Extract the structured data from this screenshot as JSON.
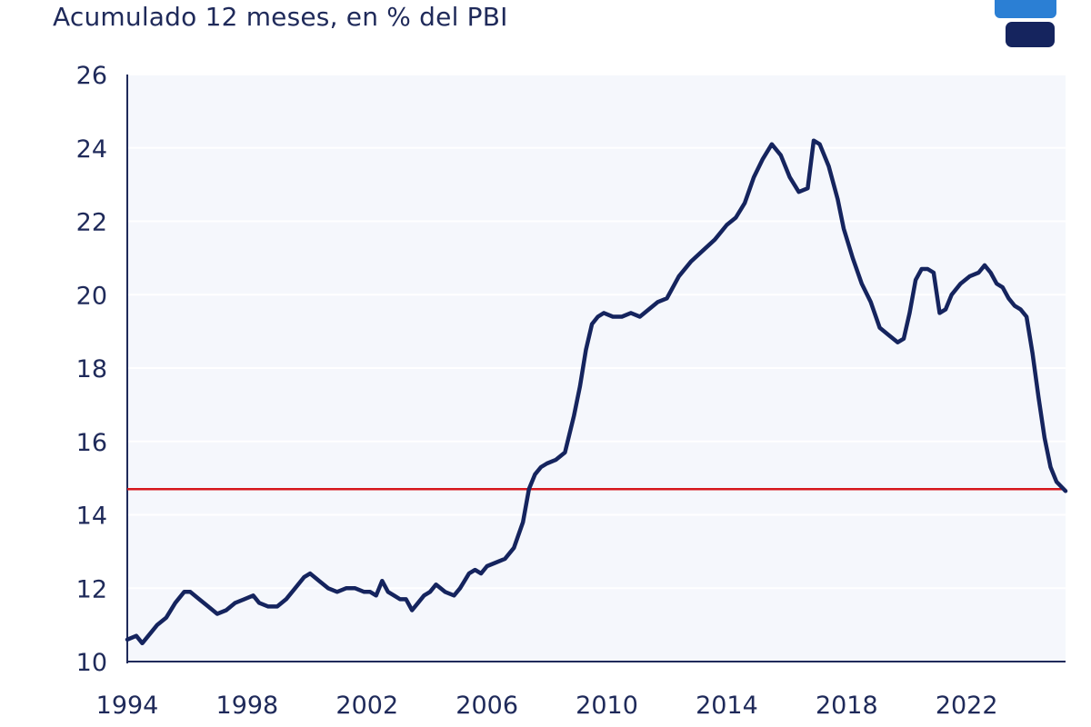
{
  "subtitle": "Acumulado 12 meses, en % del PBI",
  "logo_icon": "brand-logo-icon",
  "colors": {
    "series": "#15245e",
    "reference": "#d6171c",
    "axis": "#1f2a5a",
    "plot_bg": "#f5f7fc",
    "grid": "#ffffff"
  },
  "chart_data": {
    "type": "line",
    "title": "",
    "xlabel": "",
    "ylabel": "",
    "xlim": [
      1994,
      2025.3
    ],
    "ylim": [
      10,
      26
    ],
    "grid": "horizontal",
    "yticks": [
      "10",
      "12",
      "14",
      "16",
      "18",
      "20",
      "22",
      "24",
      "26"
    ],
    "xticks": [
      "1994",
      "1998",
      "2002",
      "2006",
      "2010",
      "2014",
      "2018",
      "2022"
    ],
    "reference_line": {
      "y": 14.7
    },
    "series": [
      {
        "x": [
          1994.0,
          1994.3,
          1994.5,
          1994.8,
          1995.0,
          1995.3,
          1995.6,
          1995.9,
          1996.1,
          1996.4,
          1996.7,
          1997.0,
          1997.3,
          1997.6,
          1997.9,
          1998.2,
          1998.4,
          1998.7,
          1999.0,
          1999.3,
          1999.6,
          1999.9,
          2000.1,
          2000.4,
          2000.7,
          2001.0,
          2001.3,
          2001.6,
          2001.9,
          2002.1,
          2002.3,
          2002.5,
          2002.7,
          2002.9,
          2003.1,
          2003.3,
          2003.5,
          2003.7,
          2003.9,
          2004.1,
          2004.3,
          2004.6,
          2004.9,
          2005.1,
          2005.4,
          2005.6,
          2005.8,
          2006.0,
          2006.3,
          2006.6,
          2006.9,
          2007.2,
          2007.4,
          2007.6,
          2007.8,
          2008.0,
          2008.3,
          2008.6,
          2008.9,
          2009.1,
          2009.3,
          2009.5,
          2009.7,
          2009.9,
          2010.2,
          2010.5,
          2010.8,
          2011.1,
          2011.4,
          2011.7,
          2012.0,
          2012.4,
          2012.8,
          2013.2,
          2013.6,
          2014.0,
          2014.3,
          2014.6,
          2014.9,
          2015.2,
          2015.5,
          2015.8,
          2016.1,
          2016.4,
          2016.7,
          2016.9,
          2017.1,
          2017.4,
          2017.7,
          2017.9,
          2018.2,
          2018.5,
          2018.8,
          2019.1,
          2019.4,
          2019.7,
          2019.9,
          2020.1,
          2020.3,
          2020.5,
          2020.7,
          2020.9,
          2021.1,
          2021.3,
          2021.5,
          2021.8,
          2022.1,
          2022.4,
          2022.6,
          2022.8,
          2023.0,
          2023.2,
          2023.4,
          2023.6,
          2023.8,
          2024.0,
          2024.2,
          2024.4,
          2024.6,
          2024.8,
          2025.0,
          2025.3
        ],
        "y": [
          10.6,
          10.7,
          10.5,
          10.8,
          11.0,
          11.2,
          11.6,
          11.9,
          11.9,
          11.7,
          11.5,
          11.3,
          11.4,
          11.6,
          11.7,
          11.8,
          11.6,
          11.5,
          11.5,
          11.7,
          12.0,
          12.3,
          12.4,
          12.2,
          12.0,
          11.9,
          12.0,
          12.0,
          11.9,
          11.9,
          11.8,
          12.2,
          11.9,
          11.8,
          11.7,
          11.7,
          11.4,
          11.6,
          11.8,
          11.9,
          12.1,
          11.9,
          11.8,
          12.0,
          12.4,
          12.5,
          12.4,
          12.6,
          12.7,
          12.8,
          13.1,
          13.8,
          14.7,
          15.1,
          15.3,
          15.4,
          15.5,
          15.7,
          16.7,
          17.5,
          18.5,
          19.2,
          19.4,
          19.5,
          19.4,
          19.4,
          19.5,
          19.4,
          19.6,
          19.8,
          19.9,
          20.5,
          20.9,
          21.2,
          21.5,
          21.9,
          22.1,
          22.5,
          23.2,
          23.7,
          24.1,
          23.8,
          23.2,
          22.8,
          22.9,
          24.2,
          24.1,
          23.5,
          22.6,
          21.8,
          21.0,
          20.3,
          19.8,
          19.1,
          18.9,
          18.7,
          18.8,
          19.5,
          20.4,
          20.7,
          20.7,
          20.6,
          19.5,
          19.6,
          20.0,
          20.3,
          20.5,
          20.6,
          20.8,
          20.6,
          20.3,
          20.2,
          19.9,
          19.7,
          19.6,
          19.4,
          18.4,
          17.2,
          16.1,
          15.3,
          14.9,
          14.65
        ]
      }
    ]
  }
}
